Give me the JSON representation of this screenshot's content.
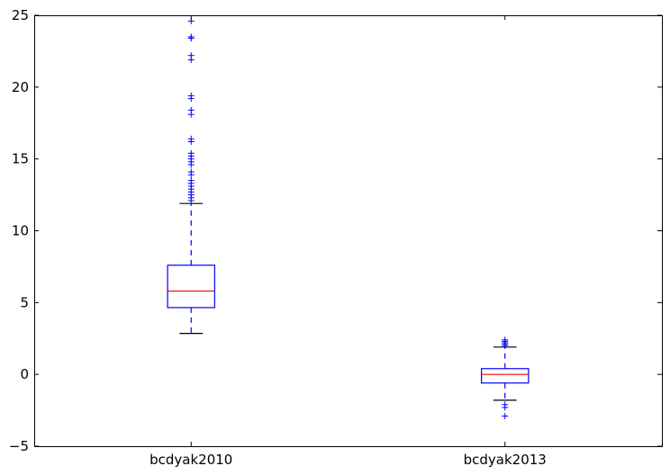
{
  "chart_data": {
    "type": "box",
    "title": "",
    "xlabel": "",
    "ylabel": "",
    "ylim": [
      -5,
      25
    ],
    "yticks": [
      -5,
      0,
      5,
      10,
      15,
      20,
      25
    ],
    "grid": false,
    "categories": [
      "bcdyak2010",
      "bcdyak2013"
    ],
    "boxes": [
      {
        "name": "bcdyak2010",
        "whisker_low": 2.85,
        "q1": 4.65,
        "median": 5.8,
        "q3": 7.6,
        "whisker_high": 11.9,
        "outliers": [
          12.1,
          12.3,
          12.5,
          12.7,
          12.9,
          13.1,
          13.3,
          13.5,
          13.9,
          14.1,
          14.6,
          14.8,
          15.0,
          15.2,
          15.4,
          16.2,
          16.4,
          18.1,
          18.4,
          19.2,
          19.4,
          21.9,
          22.2,
          23.4,
          23.5,
          24.6
        ]
      },
      {
        "name": "bcdyak2013",
        "whisker_low": -1.8,
        "q1": -0.6,
        "median": 0.0,
        "q3": 0.4,
        "whisker_high": 1.9,
        "outliers": [
          2.0,
          2.1,
          2.2,
          2.3,
          2.4,
          -2.1,
          -2.3,
          -2.9
        ]
      }
    ],
    "colors": {
      "box": "#0000ff",
      "median": "#ff0000",
      "whisker": "#0000ff",
      "cap": "#000000",
      "flier": "#0000ff"
    }
  }
}
